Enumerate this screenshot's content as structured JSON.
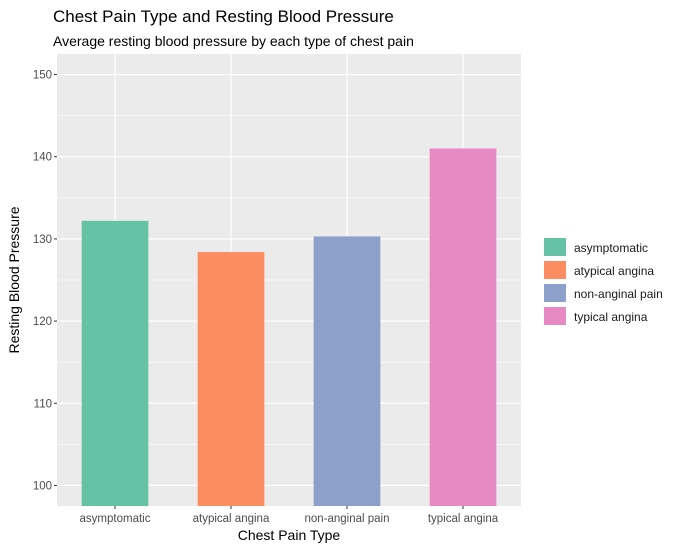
{
  "chart_data": {
    "type": "bar",
    "title": "Chest Pain Type and Resting Blood Pressure",
    "subtitle": "Average resting blood pressure by each type of chest pain",
    "xlabel": "Chest Pain Type",
    "ylabel": "Resting Blood Pressure",
    "categories": [
      "asymptomatic",
      "atypical angina",
      "non-anginal pain",
      "typical angina"
    ],
    "values": [
      132.2,
      128.4,
      130.3,
      141.0
    ],
    "ylim": [
      97.5,
      152.5
    ],
    "yticks": [
      100,
      110,
      120,
      130,
      140,
      150
    ],
    "grid": true,
    "legend_position": "right",
    "colors": [
      "#66c2a5",
      "#fc8d62",
      "#8da0cb",
      "#e78ac3"
    ],
    "panel_background": "#ebebeb"
  }
}
